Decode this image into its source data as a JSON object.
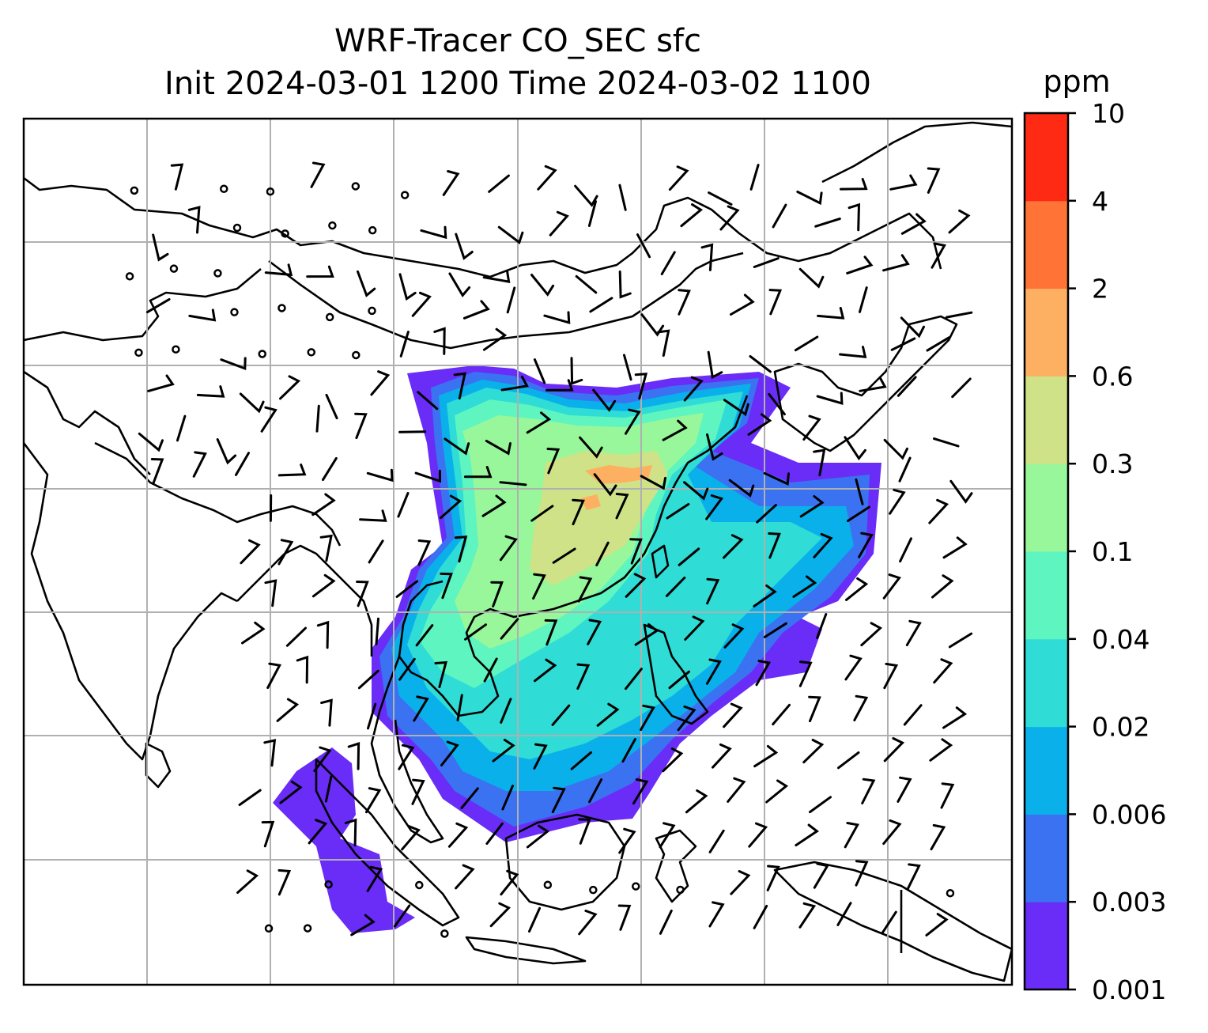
{
  "title": {
    "line1": "WRF-Tracer CO_SEC sfc",
    "line2": "Init 2024-03-01 1200 Time 2024-03-02 1100"
  },
  "colorbar": {
    "unit": "ppm",
    "levels": [
      "0.001",
      "0.003",
      "0.006",
      "0.02",
      "0.04",
      "0.1",
      "0.3",
      "0.6",
      "2",
      "4",
      "10"
    ],
    "colors": [
      "#6a2cf7",
      "#3a72f2",
      "#0ab0ea",
      "#2fdcd6",
      "#5ef5c0",
      "#98f79a",
      "#cfe287",
      "#fdb062",
      "#ff7336",
      "#ff2a14"
    ]
  },
  "map": {
    "field_colors": {
      "lowest": "#6a2cf7",
      "low": "#3a72f2",
      "mid_low": "#0ab0ea",
      "mid": "#2fdcd6",
      "mid_high": "#5ef5c0",
      "high": "#98f79a",
      "higher": "#cfe287",
      "peak": "#fdb062"
    },
    "grid_color": "#b0b0b0",
    "coastline_color": "#000000",
    "wind_barb_color": "#000000"
  }
}
